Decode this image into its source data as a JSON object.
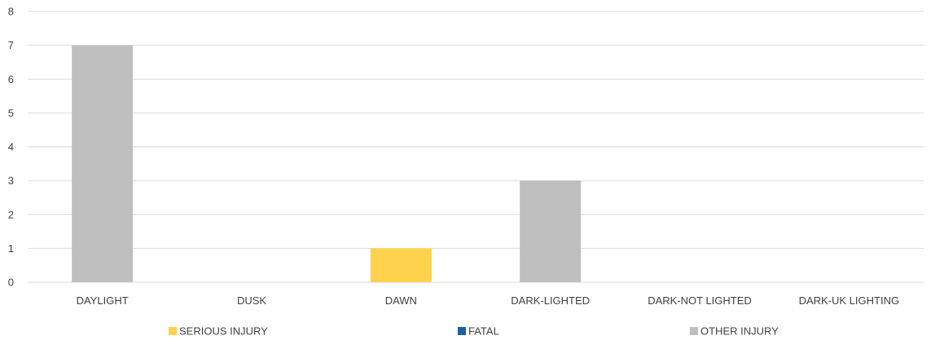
{
  "chart_data": {
    "type": "bar",
    "stacked": true,
    "categories": [
      "DAYLIGHT",
      "DUSK",
      "DAWN",
      "DARK-LIGHTED",
      "DARK-NOT LIGHTED",
      "DARK-UK LIGHTING"
    ],
    "series": [
      {
        "name": "SERIOUS INJURY",
        "color": "#ffd24d",
        "values": [
          0,
          0,
          1,
          0,
          0,
          0
        ]
      },
      {
        "name": "FATAL",
        "color": "#1f5f9e",
        "values": [
          0,
          0,
          0,
          0,
          0,
          0
        ]
      },
      {
        "name": "OTHER INJURY",
        "color": "#bfbfbf",
        "values": [
          7,
          0,
          0,
          3,
          0,
          0
        ]
      }
    ],
    "ylim": [
      0,
      8
    ],
    "yticks": [
      "0",
      "1",
      "2",
      "3",
      "4",
      "5",
      "6",
      "7",
      "8"
    ],
    "grid": true,
    "legend_position": "bottom"
  }
}
